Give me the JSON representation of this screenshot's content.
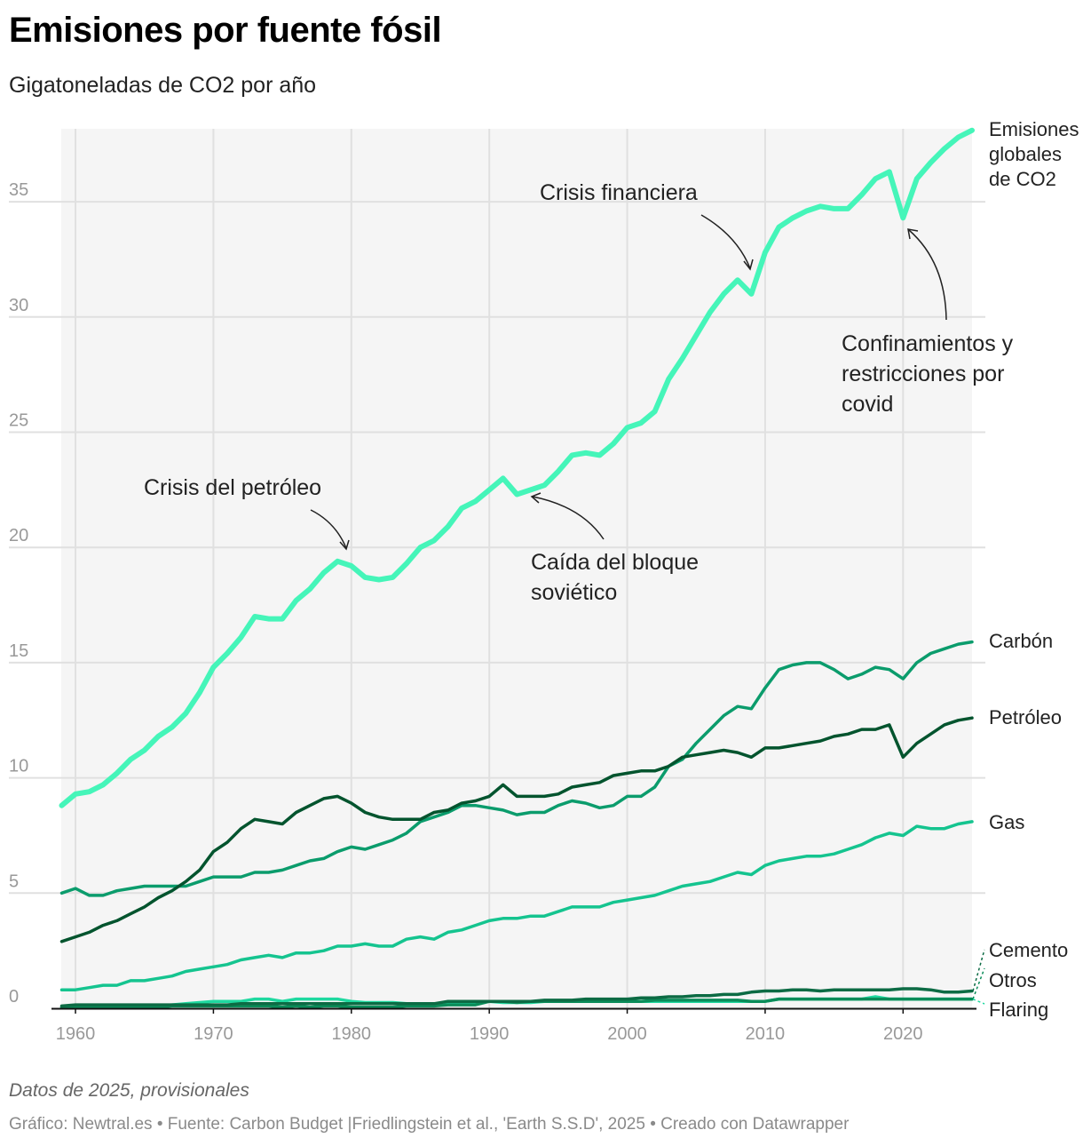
{
  "title": "Emisiones por fuente fósil",
  "subtitle": "Gigatoneladas de CO2 por año",
  "note": "Datos de 2025, provisionales",
  "source": "Gráfico: Newtral.es • Fuente: Carbon Budget |Friedlingstein et al., 'Earth S.S.D', 2025 • Creado con Datawrapper",
  "chart_data": {
    "type": "line",
    "title": "Emisiones por fuente fósil",
    "ylabel": "Gigatoneladas de CO2 por año",
    "xlim": [
      1959,
      2025
    ],
    "ylim": [
      0,
      38
    ],
    "x_ticks": [
      "1960",
      "1970",
      "1980",
      "1990",
      "2000",
      "2010",
      "2020"
    ],
    "y_ticks": [
      "0",
      "5",
      "10",
      "15",
      "20",
      "25",
      "30",
      "35"
    ],
    "grid": true,
    "x_start": 1959,
    "series": [
      {
        "name": "Emisiones globales de CO2",
        "label_lines": [
          "Emisiones",
          "globales",
          "de CO2"
        ],
        "color": "#45f5b9",
        "width": 6,
        "values": [
          8.8,
          9.3,
          9.4,
          9.7,
          10.2,
          10.8,
          11.2,
          11.8,
          12.2,
          12.8,
          13.7,
          14.8,
          15.4,
          16.1,
          17.0,
          16.9,
          16.9,
          17.7,
          18.2,
          18.9,
          19.4,
          19.2,
          18.7,
          18.6,
          18.7,
          19.3,
          20.0,
          20.3,
          20.9,
          21.7,
          22.0,
          22.5,
          23.0,
          22.3,
          22.5,
          22.7,
          23.3,
          24.0,
          24.1,
          24.0,
          24.5,
          25.2,
          25.4,
          25.9,
          27.3,
          28.2,
          29.2,
          30.2,
          31.0,
          31.6,
          31.0,
          32.8,
          33.9,
          34.3,
          34.6,
          34.8,
          34.7,
          34.7,
          35.3,
          36.0,
          36.3,
          34.3,
          36.0,
          36.7,
          37.3,
          37.8,
          38.1
        ]
      },
      {
        "name": "Carbón",
        "label_lines": [
          "Carbón"
        ],
        "color": "#0b9c6c",
        "width": 3.5,
        "values": [
          5.0,
          5.2,
          4.9,
          4.9,
          5.1,
          5.2,
          5.3,
          5.3,
          5.3,
          5.3,
          5.5,
          5.7,
          5.7,
          5.7,
          5.9,
          5.9,
          6.0,
          6.2,
          6.4,
          6.5,
          6.8,
          7.0,
          6.9,
          7.1,
          7.3,
          7.6,
          8.1,
          8.3,
          8.5,
          8.8,
          8.8,
          8.7,
          8.6,
          8.4,
          8.5,
          8.5,
          8.8,
          9.0,
          8.9,
          8.7,
          8.8,
          9.2,
          9.2,
          9.6,
          10.5,
          10.8,
          11.5,
          12.1,
          12.7,
          13.1,
          13.0,
          13.9,
          14.7,
          14.9,
          15.0,
          15.0,
          14.7,
          14.3,
          14.5,
          14.8,
          14.7,
          14.3,
          15.0,
          15.4,
          15.6,
          15.8,
          15.9
        ]
      },
      {
        "name": "Petróleo",
        "label_lines": [
          "Petróleo"
        ],
        "color": "#03542e",
        "width": 3.5,
        "values": [
          2.9,
          3.1,
          3.3,
          3.6,
          3.8,
          4.1,
          4.4,
          4.8,
          5.1,
          5.5,
          6.0,
          6.8,
          7.2,
          7.8,
          8.2,
          8.1,
          8.0,
          8.5,
          8.8,
          9.1,
          9.2,
          8.9,
          8.5,
          8.3,
          8.2,
          8.2,
          8.2,
          8.5,
          8.6,
          8.9,
          9.0,
          9.2,
          9.7,
          9.2,
          9.2,
          9.2,
          9.3,
          9.6,
          9.7,
          9.8,
          10.1,
          10.2,
          10.3,
          10.3,
          10.5,
          10.9,
          11.0,
          11.1,
          11.2,
          11.1,
          10.9,
          11.3,
          11.3,
          11.4,
          11.5,
          11.6,
          11.8,
          11.9,
          12.1,
          12.1,
          12.3,
          10.9,
          11.5,
          11.9,
          12.3,
          12.5,
          12.6
        ]
      },
      {
        "name": "Gas",
        "label_lines": [
          "Gas"
        ],
        "color": "#15c48f",
        "width": 3.5,
        "values": [
          0.8,
          0.8,
          0.9,
          1.0,
          1.0,
          1.2,
          1.2,
          1.3,
          1.4,
          1.6,
          1.7,
          1.8,
          1.9,
          2.1,
          2.2,
          2.3,
          2.2,
          2.4,
          2.4,
          2.5,
          2.7,
          2.7,
          2.8,
          2.7,
          2.7,
          3.0,
          3.1,
          3.0,
          3.3,
          3.4,
          3.6,
          3.8,
          3.9,
          3.9,
          4.0,
          4.0,
          4.2,
          4.4,
          4.4,
          4.4,
          4.6,
          4.7,
          4.8,
          4.9,
          5.1,
          5.3,
          5.4,
          5.5,
          5.7,
          5.9,
          5.8,
          6.2,
          6.4,
          6.5,
          6.6,
          6.6,
          6.7,
          6.9,
          7.1,
          7.4,
          7.6,
          7.5,
          7.9,
          7.8,
          7.8,
          8.0,
          8.1
        ]
      },
      {
        "name": "Cemento",
        "label_lines": [
          "Cemento"
        ],
        "color": "#0c6b44",
        "width": 3.5,
        "values": [
          0.1,
          0.15,
          0.15,
          0.15,
          0.15,
          0.15,
          0.15,
          0.15,
          0.15,
          0.15,
          0.15,
          0.15,
          0.15,
          0.2,
          0.2,
          0.2,
          0.2,
          0.2,
          0.2,
          0.2,
          0.2,
          0.2,
          0.2,
          0.2,
          0.2,
          0.2,
          0.2,
          0.2,
          0.3,
          0.3,
          0.3,
          0.3,
          0.3,
          0.3,
          0.3,
          0.35,
          0.35,
          0.35,
          0.4,
          0.4,
          0.4,
          0.4,
          0.45,
          0.45,
          0.5,
          0.5,
          0.55,
          0.55,
          0.6,
          0.6,
          0.7,
          0.75,
          0.75,
          0.8,
          0.8,
          0.75,
          0.8,
          0.8,
          0.8,
          0.8,
          0.8,
          0.85,
          0.85,
          0.8,
          0.7,
          0.7,
          0.75
        ]
      },
      {
        "name": "Otros",
        "label_lines": [
          "Otros"
        ],
        "color": "#0a8c59",
        "width": 3.5,
        "values": [
          0.05,
          0.05,
          0.05,
          0.05,
          0.05,
          0.05,
          0.05,
          0.05,
          0.1,
          0.1,
          0.1,
          0.1,
          0.1,
          0.1,
          0.1,
          0.1,
          0.05,
          0.1,
          0.05,
          0.1,
          0.1,
          0.05,
          0.05,
          0.05,
          0.05,
          0.1,
          0.1,
          0.1,
          0.15,
          0.15,
          0.15,
          0.3,
          0.3,
          0.25,
          0.3,
          0.3,
          0.3,
          0.3,
          0.3,
          0.3,
          0.3,
          0.3,
          0.3,
          0.35,
          0.35,
          0.35,
          0.35,
          0.35,
          0.35,
          0.35,
          0.3,
          0.3,
          0.4,
          0.4,
          0.4,
          0.4,
          0.4,
          0.4,
          0.4,
          0.4,
          0.4,
          0.4,
          0.4,
          0.4,
          0.4,
          0.4,
          0.4
        ]
      },
      {
        "name": "Flaring",
        "label_lines": [
          "Flaring"
        ],
        "color": "#1fd9a0",
        "width": 3.5,
        "values": [
          0.05,
          0.05,
          0.05,
          0.05,
          0.05,
          0.05,
          0.1,
          0.1,
          0.15,
          0.2,
          0.25,
          0.3,
          0.3,
          0.3,
          0.4,
          0.4,
          0.3,
          0.4,
          0.4,
          0.4,
          0.4,
          0.3,
          0.25,
          0.25,
          0.25,
          0.2,
          0.2,
          0.2,
          0.2,
          0.2,
          0.25,
          0.3,
          0.25,
          0.25,
          0.25,
          0.3,
          0.3,
          0.3,
          0.3,
          0.3,
          0.3,
          0.3,
          0.3,
          0.3,
          0.3,
          0.3,
          0.3,
          0.3,
          0.3,
          0.3,
          0.3,
          0.3,
          0.4,
          0.4,
          0.4,
          0.4,
          0.4,
          0.4,
          0.4,
          0.5,
          0.4,
          0.4,
          0.4,
          0.4,
          0.4,
          0.4,
          0.4
        ]
      }
    ],
    "annotations": [
      {
        "lines": [
          "Crisis del petróleo"
        ]
      },
      {
        "lines": [
          "Caída del bloque",
          "soviético"
        ]
      },
      {
        "lines": [
          "Crisis financiera"
        ]
      },
      {
        "lines": [
          "Confinamientos y",
          "restricciones por",
          "covid"
        ]
      }
    ]
  }
}
